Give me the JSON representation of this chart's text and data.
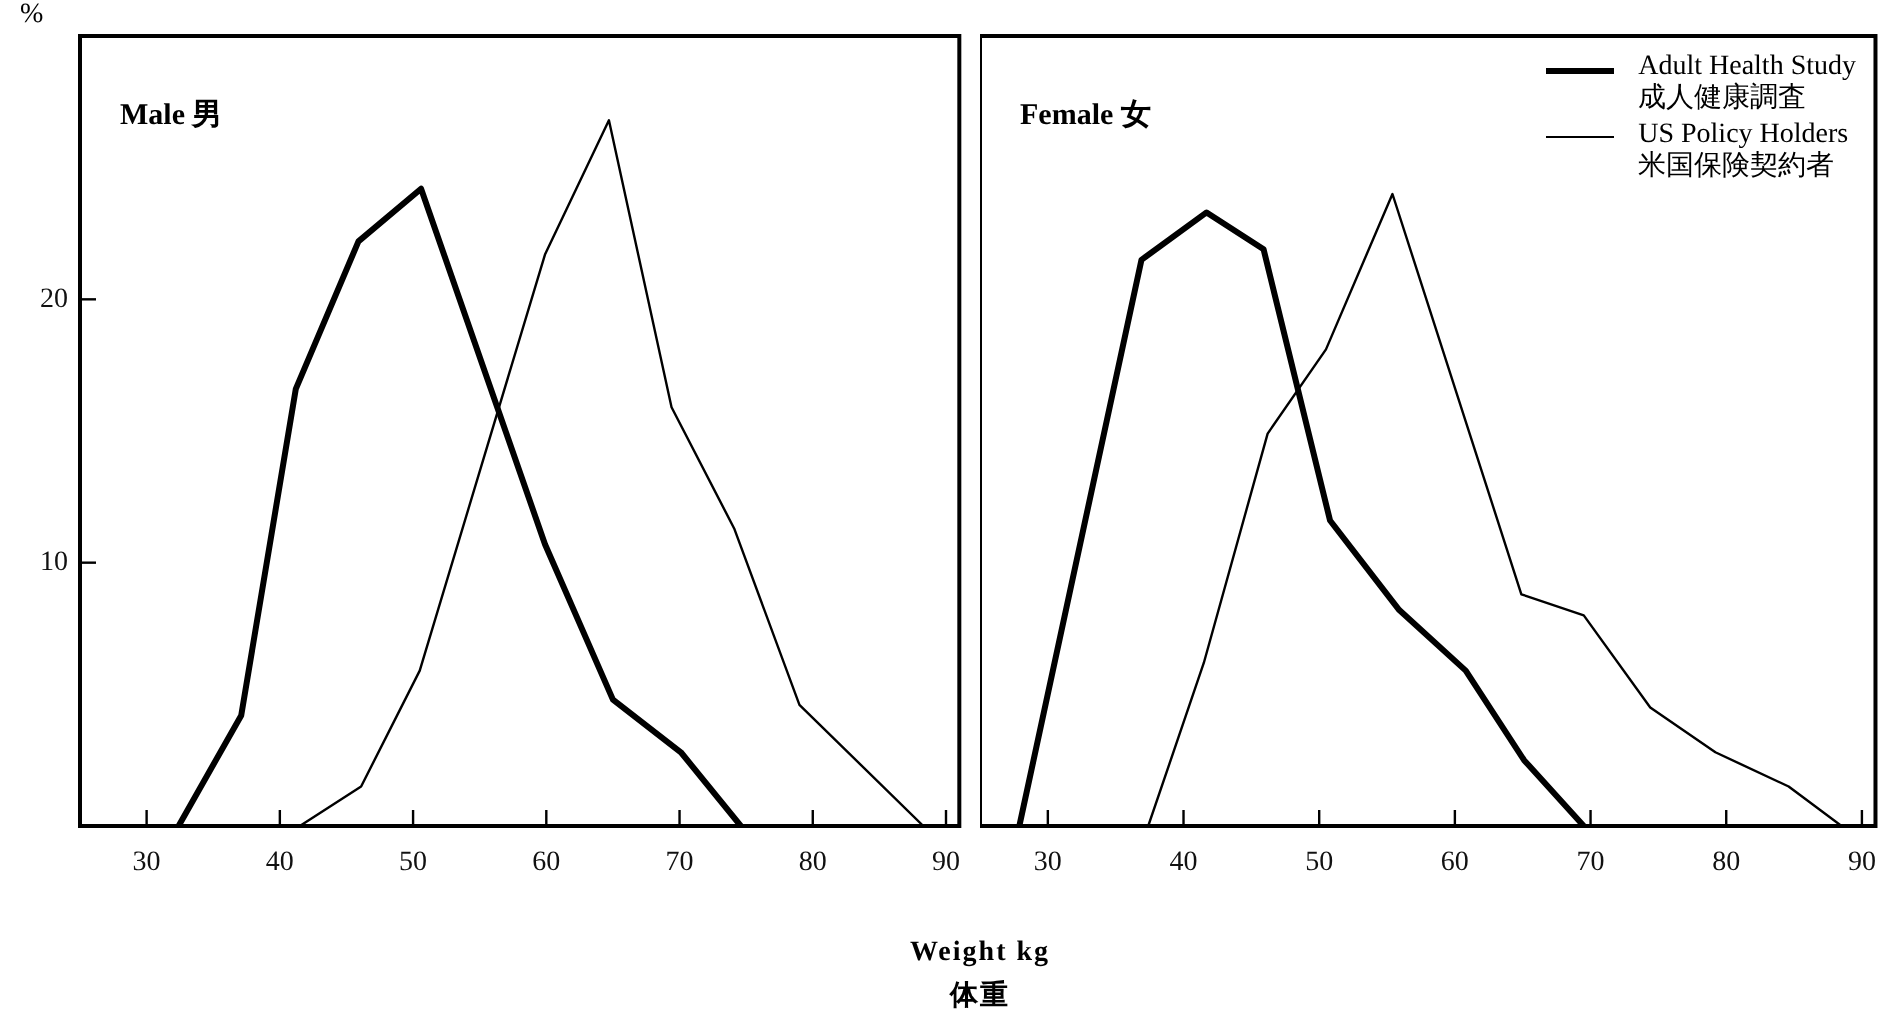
{
  "chart_data": [
    {
      "type": "line",
      "title": "Male 男",
      "ylabel": "%",
      "xlabel": "Weight  kg\n体重",
      "xlim": [
        25,
        91
      ],
      "xticks": [
        30,
        40,
        50,
        60,
        70,
        80,
        90
      ],
      "ylim": [
        0,
        30
      ],
      "yticks": [
        10,
        20
      ],
      "grid": false,
      "marker": "none",
      "line_style": "solid",
      "series": [
        {
          "color": "#000000",
          "x": [
            32.4,
            37.1,
            41.2,
            45.9,
            50.6,
            59.9,
            65,
            70.1,
            74.6
          ],
          "values": [
            0,
            4.2,
            16.6,
            22.2,
            24.2,
            10.7,
            4.8,
            2.8,
            0
          ]
        },
        {
          "color": "#000000",
          "x": [
            41.5,
            46.1,
            50.5,
            59.9,
            64.7,
            69.4,
            74.1,
            79,
            88.3
          ],
          "values": [
            0,
            1.5,
            5.9,
            21.7,
            26.8,
            15.9,
            11.3,
            4.6,
            0
          ]
        }
      ]
    },
    {
      "type": "line",
      "title": "Female 女",
      "xlim": [
        25,
        91
      ],
      "xticks": [
        30,
        40,
        50,
        60,
        70,
        80,
        90
      ],
      "ylim": [
        0,
        30
      ],
      "tick_labels": "x",
      "grid": false,
      "marker": "none",
      "line_style": "solid",
      "legend": "top right",
      "series": [
        {
          "name": "Adult Health Study\n成人健康調査",
          "color": "#000000",
          "x": [
            27.9,
            36.9,
            41.7,
            45.9,
            50.8,
            55.9,
            60.8,
            65.1,
            69.5
          ],
          "values": [
            0,
            21.5,
            23.3,
            21.9,
            11.6,
            8.2,
            5.9,
            2.5,
            0
          ]
        },
        {
          "name": "US Policy Holders\n米国保険契約者",
          "color": "#000000",
          "x": [
            37.4,
            41.5,
            46.2,
            50.5,
            55.4,
            64.9,
            69.5,
            74.4,
            79.2,
            84.6,
            88.5
          ],
          "values": [
            0,
            6.2,
            14.9,
            18.1,
            24,
            8.8,
            8,
            4.5,
            2.8,
            1.5,
            0
          ]
        }
      ]
    }
  ]
}
